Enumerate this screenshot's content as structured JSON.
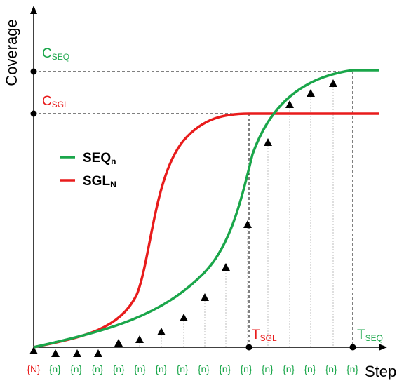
{
  "axes": {
    "y_title": "Coverage",
    "x_title": "Step"
  },
  "levels": {
    "c_seq": {
      "main": "C",
      "sub": "SEQ",
      "color": "#1aa64a"
    },
    "c_sgl": {
      "main": "C",
      "sub": "SGL",
      "color": "#e81c1c"
    },
    "t_sgl": {
      "main": "T",
      "sub": "SGL",
      "color": "#e81c1c"
    },
    "t_seq": {
      "main": "T",
      "sub": "SEQ",
      "color": "#1aa64a"
    }
  },
  "legend": [
    {
      "main": "SEQ",
      "sub": "n",
      "color": "#1aa64a"
    },
    {
      "main": "SGL",
      "sub": "N",
      "color": "#e81c1c"
    }
  ],
  "step_labels": [
    {
      "text": "{N}",
      "color": "#e81c1c"
    },
    {
      "text": "{n}",
      "color": "#1aa64a"
    },
    {
      "text": "{n}",
      "color": "#1aa64a"
    },
    {
      "text": "{n}",
      "color": "#1aa64a"
    },
    {
      "text": "{n}",
      "color": "#1aa64a"
    },
    {
      "text": "{n}",
      "color": "#1aa64a"
    },
    {
      "text": "{n}",
      "color": "#1aa64a"
    },
    {
      "text": "{n}",
      "color": "#1aa64a"
    },
    {
      "text": "{n}",
      "color": "#1aa64a"
    },
    {
      "text": "{n}",
      "color": "#1aa64a"
    },
    {
      "text": "{n}",
      "color": "#1aa64a"
    },
    {
      "text": "{n}",
      "color": "#1aa64a"
    },
    {
      "text": "{n}",
      "color": "#1aa64a"
    },
    {
      "text": "{n}",
      "color": "#1aa64a"
    },
    {
      "text": "{n}",
      "color": "#1aa64a"
    },
    {
      "text": "{n}",
      "color": "#1aa64a"
    }
  ],
  "colors": {
    "seq": "#1aa64a",
    "sgl": "#e81c1c",
    "axis": "#000000"
  }
}
